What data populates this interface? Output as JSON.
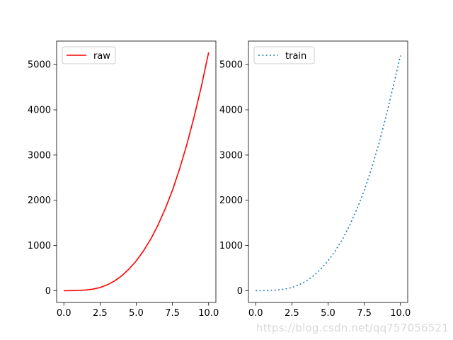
{
  "chart_data": [
    {
      "type": "line",
      "title": "",
      "xlabel": "",
      "ylabel": "",
      "xlim": [
        -0.5,
        10.5
      ],
      "ylim": [
        -260,
        5520
      ],
      "xticks": [
        0.0,
        2.5,
        5.0,
        7.5,
        10.0
      ],
      "xtick_labels": [
        "0.0",
        "2.5",
        "5.0",
        "7.5",
        "10.0"
      ],
      "yticks": [
        0,
        1000,
        2000,
        3000,
        4000,
        5000
      ],
      "ytick_labels": [
        "0",
        "1000",
        "2000",
        "3000",
        "4000",
        "5000"
      ],
      "grid": false,
      "legend": "upper left",
      "series": [
        {
          "name": "raw",
          "color": "#ff0000",
          "linestyle": "solid",
          "x": [
            0,
            0.5,
            1,
            1.5,
            2,
            2.5,
            3,
            3.5,
            4,
            4.5,
            5,
            5.5,
            6,
            6.5,
            7,
            7.5,
            8,
            8.5,
            9,
            9.5,
            10
          ],
          "y": [
            0,
            1,
            5,
            15,
            35,
            70,
            130,
            215,
            330,
            480,
            660,
            880,
            1140,
            1450,
            1810,
            2220,
            2700,
            3240,
            3850,
            4520,
            5270
          ]
        }
      ]
    },
    {
      "type": "line",
      "title": "",
      "xlabel": "",
      "ylabel": "",
      "xlim": [
        -0.5,
        10.5
      ],
      "ylim": [
        -260,
        5520
      ],
      "xticks": [
        0.0,
        2.5,
        5.0,
        7.5,
        10.0
      ],
      "xtick_labels": [
        "0.0",
        "2.5",
        "5.0",
        "7.5",
        "10.0"
      ],
      "yticks": [
        0,
        1000,
        2000,
        3000,
        4000,
        5000
      ],
      "ytick_labels": [
        "0",
        "1000",
        "2000",
        "3000",
        "4000",
        "5000"
      ],
      "grid": false,
      "legend": "upper left",
      "series": [
        {
          "name": "train",
          "color": "#1f77b4",
          "linestyle": "dotted",
          "x": [
            0,
            0.5,
            1,
            1.5,
            2,
            2.5,
            3,
            3.5,
            4,
            4.5,
            5,
            5.5,
            6,
            6.5,
            7,
            7.5,
            8,
            8.5,
            9,
            9.5,
            10
          ],
          "y": [
            0,
            1,
            5,
            15,
            35,
            70,
            130,
            215,
            330,
            480,
            660,
            880,
            1140,
            1450,
            1810,
            2220,
            2700,
            3240,
            3850,
            4520,
            5200
          ]
        }
      ]
    }
  ],
  "watermark": "https://blog.csdn.net/qq757056521"
}
